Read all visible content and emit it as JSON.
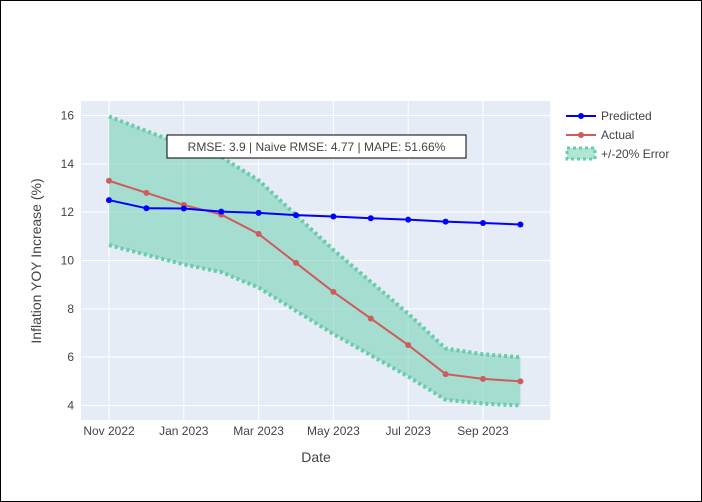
{
  "chart_data": {
    "type": "line",
    "xlabel": "Date",
    "ylabel": "Inflation YOY Increase (%)",
    "x": [
      "2022-11",
      "2022-12",
      "2023-01",
      "2023-02",
      "2023-03",
      "2023-04",
      "2023-05",
      "2023-06",
      "2023-07",
      "2023-08",
      "2023-09",
      "2023-10"
    ],
    "x_tick_labels": [
      "Nov 2022",
      "Jan 2023",
      "Mar 2023",
      "May 2023",
      "Jul 2023",
      "Sep 2023"
    ],
    "x_tick_values": [
      "2022-11",
      "2023-01",
      "2023-03",
      "2023-05",
      "2023-07",
      "2023-09"
    ],
    "y_ticks": [
      4,
      6,
      8,
      10,
      12,
      14,
      16
    ],
    "ylim": [
      3.4,
      16.6
    ],
    "grid": true,
    "legend_position": "top-right",
    "series": [
      {
        "name": "Predicted",
        "kind": "line+markers",
        "color": "#0000ff",
        "values": [
          12.5,
          12.16,
          12.15,
          12.02,
          11.97,
          11.88,
          11.82,
          11.75,
          11.69,
          11.61,
          11.55,
          11.49
        ]
      },
      {
        "name": "Actual",
        "kind": "line+markers",
        "color": "#cd5c5c",
        "values": [
          13.3,
          12.8,
          12.3,
          11.9,
          11.1,
          9.9,
          8.7,
          7.6,
          6.5,
          5.3,
          5.1,
          5.0
        ]
      },
      {
        "name": "+/-20% Error",
        "kind": "band",
        "color": "#66cdaa",
        "upper": [
          15.96,
          15.36,
          14.76,
          14.28,
          13.32,
          11.88,
          10.44,
          9.12,
          7.8,
          6.36,
          6.12,
          6.0
        ],
        "lower": [
          10.64,
          10.24,
          9.84,
          9.52,
          8.88,
          7.92,
          6.96,
          6.08,
          5.2,
          4.24,
          4.08,
          4.0
        ]
      }
    ],
    "annotation": "RMSE: 3.9 | Naive RMSE: 4.77 | MAPE: 51.66%"
  }
}
